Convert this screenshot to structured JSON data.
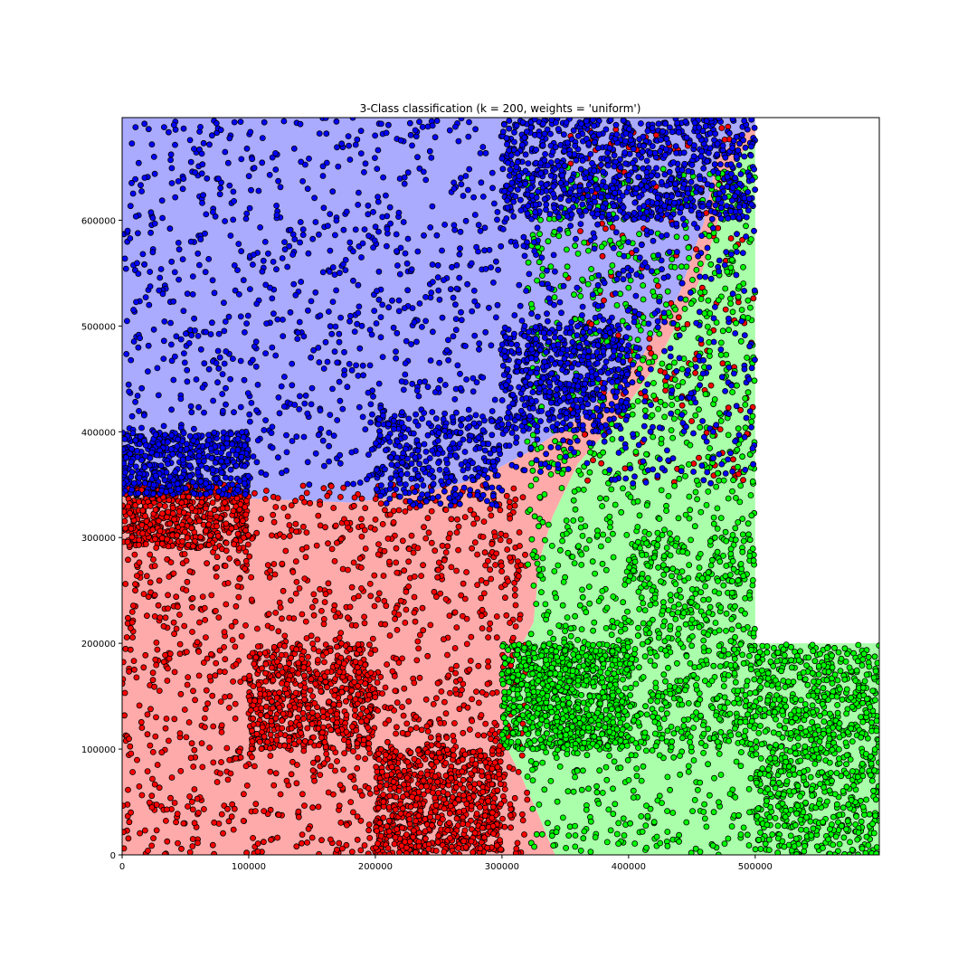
{
  "chart_data": {
    "type": "scatter",
    "title": "3-Class classification (k = 200, weights = 'uniform')",
    "xlabel": "",
    "ylabel": "",
    "xlim": [
      0,
      598000
    ],
    "ylim": [
      0,
      697000
    ],
    "xticks": [
      0,
      100000,
      200000,
      300000,
      400000,
      500000
    ],
    "yticks": [
      0,
      100000,
      200000,
      300000,
      400000,
      500000,
      600000
    ],
    "xtick_labels": [
      "0",
      "100000",
      "200000",
      "300000",
      "400000",
      "500000"
    ],
    "ytick_labels": [
      "0",
      "100000",
      "200000",
      "300000",
      "400000",
      "500000",
      "600000"
    ],
    "grid": false,
    "legend": "none",
    "classes": [
      {
        "id": 0,
        "point_color": "#0000ff",
        "region_color": "#aaaaff"
      },
      {
        "id": 1,
        "point_color": "#ff0000",
        "region_color": "#ffaaaa"
      },
      {
        "id": 2,
        "point_color": "#00ff00",
        "region_color": "#aaffaa"
      }
    ],
    "series": [
      {
        "class": 0,
        "clusters": [
          {
            "x": [
              0,
              500000
            ],
            "y": [
              350000,
              697000
            ],
            "n": 1500
          },
          {
            "x": [
              300000,
              500000
            ],
            "y": [
              600000,
              697000
            ],
            "n": 800
          },
          {
            "x": [
              300000,
              400000
            ],
            "y": [
              400000,
              500000
            ],
            "n": 500
          },
          {
            "x": [
              0,
              100000
            ],
            "y": [
              340000,
              400000
            ],
            "n": 450
          },
          {
            "x": [
              200000,
              300000
            ],
            "y": [
              330000,
              420000
            ],
            "n": 300
          }
        ]
      },
      {
        "class": 1,
        "clusters": [
          {
            "x": [
              0,
              320000
            ],
            "y": [
              0,
              350000
            ],
            "n": 1400
          },
          {
            "x": [
              0,
              100000
            ],
            "y": [
              290000,
              350000
            ],
            "n": 450
          },
          {
            "x": [
              100000,
              200000
            ],
            "y": [
              100000,
              200000
            ],
            "n": 500
          },
          {
            "x": [
              200000,
              300000
            ],
            "y": [
              0,
              100000
            ],
            "n": 650
          },
          {
            "x": [
              350000,
              500000
            ],
            "y": [
              350000,
              690000
            ],
            "n": 200
          }
        ]
      },
      {
        "class": 2,
        "clusters": [
          {
            "x": [
              320000,
              500000
            ],
            "y": [
              0,
              650000
            ],
            "n": 1300
          },
          {
            "x": [
              500000,
              598000
            ],
            "y": [
              0,
              200000
            ],
            "n": 900
          },
          {
            "x": [
              300000,
              400000
            ],
            "y": [
              100000,
              200000
            ],
            "n": 750
          },
          {
            "x": [
              400000,
              500000
            ],
            "y": [
              100000,
              300000
            ],
            "n": 400
          }
        ]
      }
    ],
    "decision_regions": [
      {
        "class": 0,
        "polygon": [
          [
            0,
            697000
          ],
          [
            500000,
            697000
          ],
          [
            500000,
            690000
          ],
          [
            470000,
            660000
          ],
          [
            460000,
            600000
          ],
          [
            440000,
            530000
          ],
          [
            410000,
            470000
          ],
          [
            370000,
            420000
          ],
          [
            320000,
            380000
          ],
          [
            280000,
            355000
          ],
          [
            230000,
            340000
          ],
          [
            180000,
            333000
          ],
          [
            100000,
            337000
          ],
          [
            0,
            355000
          ]
        ]
      },
      {
        "class": 1,
        "polygon": [
          [
            0,
            355000
          ],
          [
            100000,
            337000
          ],
          [
            180000,
            333000
          ],
          [
            230000,
            340000
          ],
          [
            280000,
            355000
          ],
          [
            320000,
            380000
          ],
          [
            370000,
            420000
          ],
          [
            410000,
            470000
          ],
          [
            440000,
            530000
          ],
          [
            460000,
            600000
          ],
          [
            470000,
            660000
          ],
          [
            500000,
            690000
          ],
          [
            500000,
            680000
          ],
          [
            475000,
            640000
          ],
          [
            470000,
            595000
          ],
          [
            455000,
            540000
          ],
          [
            420000,
            460000
          ],
          [
            390000,
            410000
          ],
          [
            360000,
            370000
          ],
          [
            340000,
            320000
          ],
          [
            330000,
            280000
          ],
          [
            325000,
            220000
          ],
          [
            312000,
            190000
          ],
          [
            303000,
            150000
          ],
          [
            300000,
            110000
          ],
          [
            315000,
            75000
          ],
          [
            328000,
            40000
          ],
          [
            342000,
            0
          ],
          [
            0,
            0
          ]
        ]
      },
      {
        "class": 2,
        "polygon": [
          [
            342000,
            0
          ],
          [
            328000,
            40000
          ],
          [
            315000,
            75000
          ],
          [
            300000,
            110000
          ],
          [
            303000,
            150000
          ],
          [
            312000,
            190000
          ],
          [
            325000,
            220000
          ],
          [
            330000,
            280000
          ],
          [
            340000,
            320000
          ],
          [
            360000,
            370000
          ],
          [
            390000,
            410000
          ],
          [
            420000,
            460000
          ],
          [
            455000,
            540000
          ],
          [
            470000,
            595000
          ],
          [
            475000,
            640000
          ],
          [
            500000,
            680000
          ],
          [
            500000,
            200000
          ],
          [
            598000,
            200000
          ],
          [
            598000,
            0
          ]
        ]
      }
    ]
  }
}
